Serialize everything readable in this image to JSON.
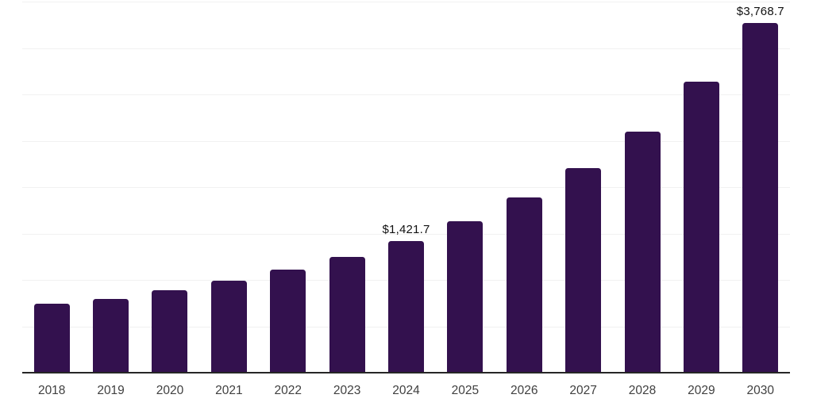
{
  "chart_data": {
    "type": "bar",
    "categories": [
      "2018",
      "2019",
      "2020",
      "2021",
      "2022",
      "2023",
      "2024",
      "2025",
      "2026",
      "2027",
      "2028",
      "2029",
      "2030"
    ],
    "values": [
      744,
      795,
      889,
      992,
      1112,
      1249,
      1421.7,
      1633,
      1890,
      2206,
      2600,
      3138,
      3768.7
    ],
    "labeled_points": [
      {
        "category": "2024",
        "label": "$1,421.7"
      },
      {
        "category": "2030",
        "label": "$3,768.7"
      }
    ],
    "ylim": [
      0,
      4000
    ],
    "gridline_step": 500,
    "grid": true,
    "legend": "none",
    "yaxis_tick_labels": "none",
    "colors": {
      "bar": "#33114E",
      "gridline": "#f1f1f1",
      "axis": "#262626",
      "x_tick_label": "#404040",
      "value_label": "#111111",
      "background": "#ffffff"
    }
  }
}
